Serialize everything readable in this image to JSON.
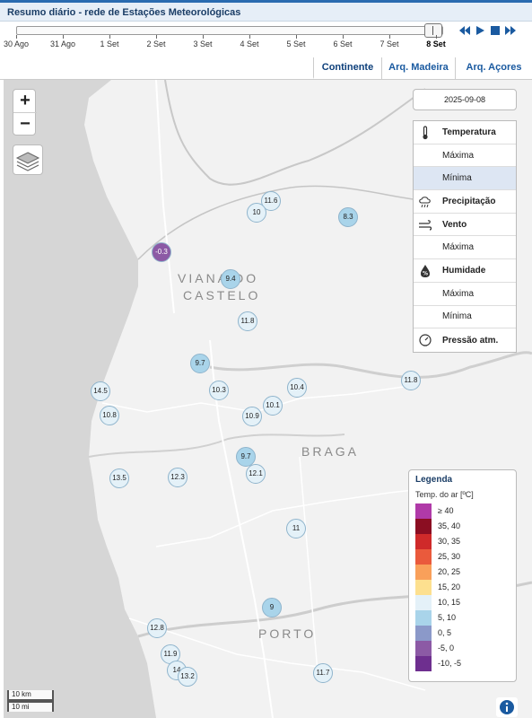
{
  "header": {
    "title": "Resumo diário - rede de Estações Meteorológicas"
  },
  "timeline": {
    "ticks": [
      "30 Ago",
      "31 Ago",
      "1 Set",
      "2 Set",
      "3 Set",
      "4 Set",
      "5 Set",
      "6 Set",
      "7 Set",
      "8 Set"
    ],
    "selected_index": 9
  },
  "tabs": [
    {
      "label": "Continente"
    },
    {
      "label": "Arq. Madeira"
    },
    {
      "label": "Arq. Açores"
    }
  ],
  "map": {
    "zoom_in": "+",
    "zoom_out": "−",
    "places": [
      "VIANA DO",
      "CASTELO",
      "BRAGA",
      "PORTO"
    ],
    "stations": [
      {
        "value": "11.6",
        "color": "#e4f1f8"
      },
      {
        "value": "10",
        "color": "#e4f1f8"
      },
      {
        "value": "8.3",
        "color": "#a9d4ea"
      },
      {
        "value": "-0.3",
        "color": "#8c5aa5"
      },
      {
        "value": "9.4",
        "color": "#a9d4ea"
      },
      {
        "value": "11.8",
        "color": "#e4f1f8"
      },
      {
        "value": "9.7",
        "color": "#a9d4ea"
      },
      {
        "value": "14.5",
        "color": "#e4f1f8"
      },
      {
        "value": "10.3",
        "color": "#e4f1f8"
      },
      {
        "value": "10.4",
        "color": "#e4f1f8"
      },
      {
        "value": "11.8",
        "color": "#e4f1f8"
      },
      {
        "value": "10.8",
        "color": "#e4f1f8"
      },
      {
        "value": "10.1",
        "color": "#e4f1f8"
      },
      {
        "value": "10.9",
        "color": "#e4f1f8"
      },
      {
        "value": "9.7",
        "color": "#a9d4ea"
      },
      {
        "value": "12.1",
        "color": "#e4f1f8"
      },
      {
        "value": "13.5",
        "color": "#e4f1f8"
      },
      {
        "value": "12.3",
        "color": "#e4f1f8"
      },
      {
        "value": "11",
        "color": "#e4f1f8"
      },
      {
        "value": "9",
        "color": "#a9d4ea"
      },
      {
        "value": "12.8",
        "color": "#e4f1f8"
      },
      {
        "value": "11.9",
        "color": "#e4f1f8"
      },
      {
        "value": "14",
        "color": "#e4f1f8"
      },
      {
        "value": "13.2",
        "color": "#e4f1f8"
      },
      {
        "value": "11.7",
        "color": "#e4f1f8"
      }
    ]
  },
  "panel": {
    "date": "2025-09-08",
    "menu": [
      {
        "label": "Temperatura",
        "kind": "head",
        "icon": "thermometer-icon"
      },
      {
        "label": "Máxima",
        "kind": "sub"
      },
      {
        "label": "Mínima",
        "kind": "sub",
        "selected": true
      },
      {
        "label": "Precipitação",
        "kind": "head",
        "icon": "rain-cloud-icon"
      },
      {
        "label": "Vento",
        "kind": "head",
        "icon": "wind-icon"
      },
      {
        "label": "Máxima",
        "kind": "sub"
      },
      {
        "label": "Humidade",
        "kind": "head",
        "icon": "humidity-icon"
      },
      {
        "label": "Máxima",
        "kind": "sub"
      },
      {
        "label": "Mínima",
        "kind": "sub"
      },
      {
        "label": "Pressão atm.",
        "kind": "head",
        "icon": "pressure-gauge-icon"
      }
    ]
  },
  "legend": {
    "title": "Legenda",
    "subtitle": "Temp. do ar [ºC]",
    "items": [
      {
        "label": "≥ 40",
        "color": "#b03aa8"
      },
      {
        "label": "35, 40",
        "color": "#8b0e22"
      },
      {
        "label": "30, 35",
        "color": "#cf2a2a"
      },
      {
        "label": "25, 30",
        "color": "#ea5a3c"
      },
      {
        "label": "20, 25",
        "color": "#f9a05a"
      },
      {
        "label": "15, 20",
        "color": "#fde08f"
      },
      {
        "label": "10, 15",
        "color": "#e4f1f8"
      },
      {
        "label": "5, 10",
        "color": "#a9d4ea"
      },
      {
        "label": "0, 5",
        "color": "#8b99c9"
      },
      {
        "label": "-5, 0",
        "color": "#8c5aa5"
      },
      {
        "label": "-10, -5",
        "color": "#6e2f8f"
      }
    ]
  },
  "scale": {
    "km": "10 km",
    "mi": "10 mi"
  }
}
